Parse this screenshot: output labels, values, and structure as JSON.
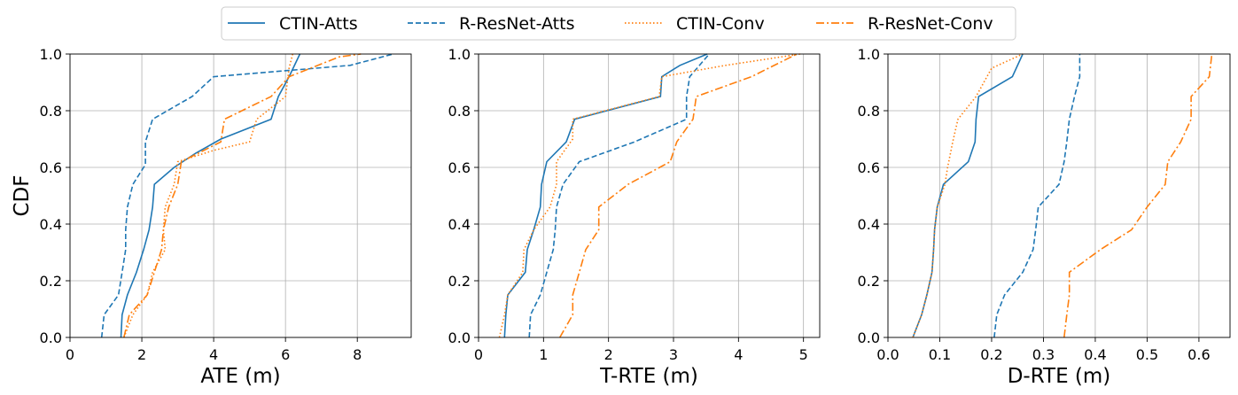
{
  "chart_data": {
    "type": "line",
    "legend": {
      "placement": "top-center",
      "entries": [
        {
          "name": "CTIN-Atts",
          "color": "#1f77b4",
          "style": "solid"
        },
        {
          "name": "R-ResNet-Atts",
          "color": "#1f77b4",
          "style": "dashed"
        },
        {
          "name": "CTIN-Conv",
          "color": "#ff7f0e",
          "style": "dotted"
        },
        {
          "name": "R-ResNet-Conv",
          "color": "#ff7f0e",
          "style": "dashdot"
        }
      ]
    },
    "ylabel": "CDF",
    "grid": true,
    "panels": [
      {
        "xlabel": "ATE (m)",
        "xlim": [
          0,
          9.5
        ],
        "ylim": [
          0,
          1
        ],
        "xticks": [
          0,
          2,
          4,
          6,
          8
        ],
        "xtick_labels": [
          "0",
          "2",
          "4",
          "6",
          "8"
        ],
        "yticks": [
          0,
          0.2,
          0.4,
          0.6,
          0.8,
          1.0
        ],
        "ytick_labels": [
          "0.0",
          "0.2",
          "0.4",
          "0.6",
          "0.8",
          "1.0"
        ],
        "series": [
          {
            "name": "CTIN-Atts",
            "points": [
              [
                1.42,
                0
              ],
              [
                1.45,
                0.08
              ],
              [
                1.6,
                0.15
              ],
              [
                1.85,
                0.23
              ],
              [
                2.05,
                0.31
              ],
              [
                2.2,
                0.38
              ],
              [
                2.3,
                0.46
              ],
              [
                2.35,
                0.54
              ],
              [
                2.9,
                0.6
              ],
              [
                3.5,
                0.65
              ],
              [
                4.2,
                0.7
              ],
              [
                5.6,
                0.77
              ],
              [
                5.8,
                0.85
              ],
              [
                6.1,
                0.92
              ],
              [
                6.4,
                1.0
              ]
            ]
          },
          {
            "name": "R-ResNet-Atts",
            "points": [
              [
                0.88,
                0
              ],
              [
                0.95,
                0.08
              ],
              [
                1.35,
                0.15
              ],
              [
                1.45,
                0.23
              ],
              [
                1.55,
                0.31
              ],
              [
                1.55,
                0.38
              ],
              [
                1.6,
                0.46
              ],
              [
                1.75,
                0.54
              ],
              [
                2.1,
                0.61
              ],
              [
                2.1,
                0.69
              ],
              [
                2.3,
                0.77
              ],
              [
                3.4,
                0.85
              ],
              [
                4.0,
                0.92
              ],
              [
                7.8,
                0.96
              ],
              [
                9.0,
                1.0
              ]
            ]
          },
          {
            "name": "CTIN-Conv",
            "points": [
              [
                1.5,
                0
              ],
              [
                1.75,
                0.08
              ],
              [
                2.15,
                0.15
              ],
              [
                2.3,
                0.23
              ],
              [
                2.65,
                0.31
              ],
              [
                2.6,
                0.38
              ],
              [
                2.65,
                0.46
              ],
              [
                2.9,
                0.54
              ],
              [
                3.0,
                0.62
              ],
              [
                4.0,
                0.66
              ],
              [
                5.0,
                0.69
              ],
              [
                5.2,
                0.77
              ],
              [
                6.0,
                0.85
              ],
              [
                6.1,
                0.95
              ],
              [
                6.2,
                1.0
              ]
            ]
          },
          {
            "name": "R-ResNet-Conv",
            "points": [
              [
                1.5,
                0
              ],
              [
                1.65,
                0.08
              ],
              [
                2.15,
                0.15
              ],
              [
                2.35,
                0.23
              ],
              [
                2.55,
                0.31
              ],
              [
                2.6,
                0.38
              ],
              [
                2.75,
                0.46
              ],
              [
                3.0,
                0.54
              ],
              [
                3.1,
                0.62
              ],
              [
                4.2,
                0.69
              ],
              [
                4.3,
                0.77
              ],
              [
                5.6,
                0.85
              ],
              [
                6.1,
                0.92
              ],
              [
                7.5,
                0.99
              ],
              [
                8.1,
                1.0
              ]
            ]
          }
        ]
      },
      {
        "xlabel": "T-RTE (m)",
        "xlim": [
          0,
          5.25
        ],
        "ylim": [
          0,
          1
        ],
        "xticks": [
          0,
          1,
          2,
          3,
          4,
          5
        ],
        "xtick_labels": [
          "0",
          "1",
          "2",
          "3",
          "4",
          "5"
        ],
        "yticks": [
          0,
          0.2,
          0.4,
          0.6,
          0.8,
          1.0
        ],
        "ytick_labels": [
          "0.0",
          "0.2",
          "0.4",
          "0.6",
          "0.8",
          "1.0"
        ],
        "series": [
          {
            "name": "CTIN-Atts",
            "points": [
              [
                0.4,
                0
              ],
              [
                0.42,
                0.08
              ],
              [
                0.45,
                0.15
              ],
              [
                0.72,
                0.23
              ],
              [
                0.75,
                0.31
              ],
              [
                0.85,
                0.38
              ],
              [
                0.95,
                0.46
              ],
              [
                0.97,
                0.54
              ],
              [
                1.05,
                0.62
              ],
              [
                1.35,
                0.69
              ],
              [
                1.48,
                0.77
              ],
              [
                2.8,
                0.85
              ],
              [
                2.82,
                0.92
              ],
              [
                3.1,
                0.96
              ],
              [
                3.52,
                1.0
              ]
            ]
          },
          {
            "name": "R-ResNet-Atts",
            "points": [
              [
                0.78,
                0
              ],
              [
                0.8,
                0.08
              ],
              [
                0.95,
                0.15
              ],
              [
                1.05,
                0.23
              ],
              [
                1.15,
                0.31
              ],
              [
                1.18,
                0.38
              ],
              [
                1.2,
                0.46
              ],
              [
                1.3,
                0.54
              ],
              [
                1.55,
                0.62
              ],
              [
                2.4,
                0.69
              ],
              [
                3.2,
                0.77
              ],
              [
                3.2,
                0.85
              ],
              [
                3.25,
                0.92
              ],
              [
                3.55,
                1.0
              ]
            ]
          },
          {
            "name": "CTIN-Conv",
            "points": [
              [
                0.32,
                0
              ],
              [
                0.4,
                0.08
              ],
              [
                0.45,
                0.15
              ],
              [
                0.68,
                0.23
              ],
              [
                0.7,
                0.31
              ],
              [
                0.85,
                0.38
              ],
              [
                1.1,
                0.46
              ],
              [
                1.2,
                0.54
              ],
              [
                1.2,
                0.62
              ],
              [
                1.45,
                0.7
              ],
              [
                1.45,
                0.77
              ],
              [
                2.78,
                0.85
              ],
              [
                2.82,
                0.92
              ],
              [
                3.8,
                0.96
              ],
              [
                4.95,
                1.0
              ]
            ]
          },
          {
            "name": "R-ResNet-Conv",
            "points": [
              [
                1.25,
                0
              ],
              [
                1.45,
                0.08
              ],
              [
                1.45,
                0.15
              ],
              [
                1.55,
                0.23
              ],
              [
                1.65,
                0.31
              ],
              [
                1.85,
                0.38
              ],
              [
                1.85,
                0.46
              ],
              [
                2.3,
                0.54
              ],
              [
                2.95,
                0.62
              ],
              [
                3.05,
                0.69
              ],
              [
                3.3,
                0.77
              ],
              [
                3.35,
                0.85
              ],
              [
                4.2,
                0.92
              ],
              [
                4.9,
                1.0
              ]
            ]
          }
        ]
      },
      {
        "xlabel": "D-RTE (m)",
        "xlim": [
          0,
          0.66
        ],
        "ylim": [
          0,
          1
        ],
        "xticks": [
          0,
          0.1,
          0.2,
          0.3,
          0.4,
          0.5,
          0.6
        ],
        "xtick_labels": [
          "0.0",
          "0.1",
          "0.2",
          "0.3",
          "0.4",
          "0.5",
          "0.6"
        ],
        "yticks": [
          0,
          0.2,
          0.4,
          0.6,
          0.8,
          1.0
        ],
        "ytick_labels": [
          "0.0",
          "0.2",
          "0.4",
          "0.6",
          "0.8",
          "1.0"
        ],
        "series": [
          {
            "name": "CTIN-Atts",
            "points": [
              [
                0.048,
                0
              ],
              [
                0.065,
                0.08
              ],
              [
                0.075,
                0.15
              ],
              [
                0.085,
                0.23
              ],
              [
                0.088,
                0.31
              ],
              [
                0.09,
                0.38
              ],
              [
                0.095,
                0.46
              ],
              [
                0.107,
                0.54
              ],
              [
                0.155,
                0.62
              ],
              [
                0.168,
                0.69
              ],
              [
                0.17,
                0.77
              ],
              [
                0.175,
                0.85
              ],
              [
                0.24,
                0.92
              ],
              [
                0.26,
                1.0
              ]
            ]
          },
          {
            "name": "R-ResNet-Atts",
            "points": [
              [
                0.205,
                0
              ],
              [
                0.21,
                0.08
              ],
              [
                0.225,
                0.15
              ],
              [
                0.26,
                0.23
              ],
              [
                0.28,
                0.31
              ],
              [
                0.285,
                0.38
              ],
              [
                0.29,
                0.46
              ],
              [
                0.33,
                0.54
              ],
              [
                0.34,
                0.62
              ],
              [
                0.345,
                0.69
              ],
              [
                0.35,
                0.77
              ],
              [
                0.36,
                0.85
              ],
              [
                0.37,
                0.92
              ],
              [
                0.37,
                1.0
              ]
            ]
          },
          {
            "name": "CTIN-Conv",
            "points": [
              [
                0.048,
                0
              ],
              [
                0.065,
                0.08
              ],
              [
                0.075,
                0.15
              ],
              [
                0.085,
                0.23
              ],
              [
                0.088,
                0.31
              ],
              [
                0.09,
                0.38
              ],
              [
                0.095,
                0.46
              ],
              [
                0.11,
                0.54
              ],
              [
                0.115,
                0.6
              ],
              [
                0.125,
                0.69
              ],
              [
                0.135,
                0.77
              ],
              [
                0.17,
                0.85
              ],
              [
                0.2,
                0.95
              ],
              [
                0.26,
                1.0
              ]
            ]
          },
          {
            "name": "R-ResNet-Conv",
            "points": [
              [
                0.34,
                0
              ],
              [
                0.345,
                0.08
              ],
              [
                0.35,
                0.15
              ],
              [
                0.35,
                0.23
              ],
              [
                0.41,
                0.31
              ],
              [
                0.47,
                0.38
              ],
              [
                0.5,
                0.46
              ],
              [
                0.535,
                0.54
              ],
              [
                0.54,
                0.62
              ],
              [
                0.565,
                0.69
              ],
              [
                0.585,
                0.77
              ],
              [
                0.585,
                0.85
              ],
              [
                0.62,
                0.92
              ],
              [
                0.625,
                1.0
              ]
            ]
          }
        ]
      }
    ]
  }
}
